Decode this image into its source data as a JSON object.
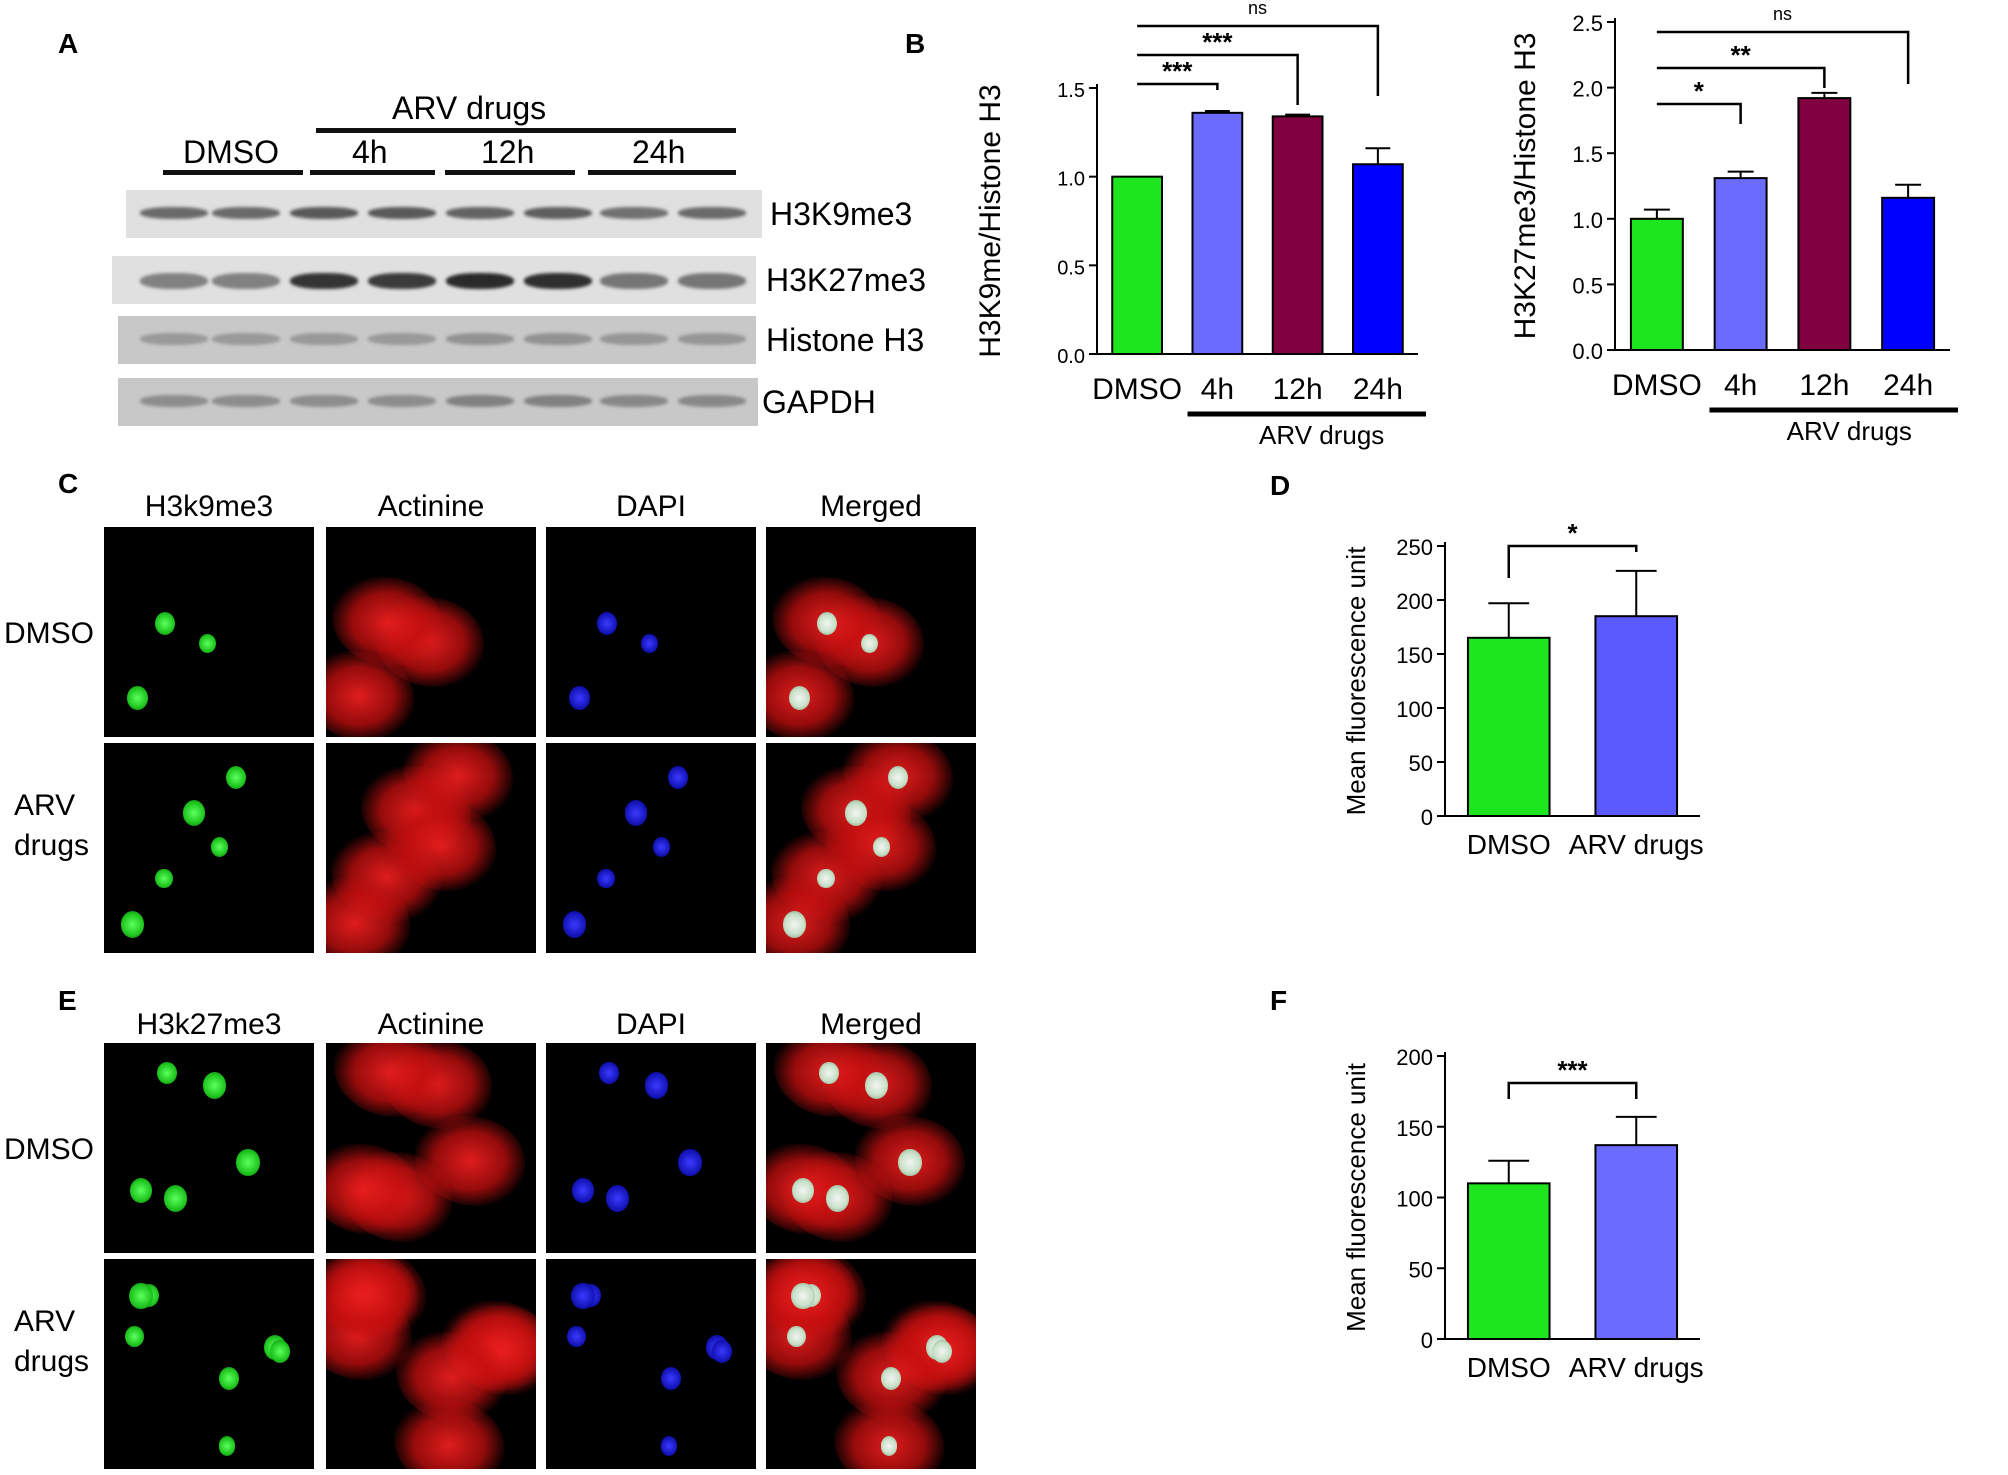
{
  "panels": {
    "A": {
      "label": "A",
      "group_header": "ARV drugs",
      "lanes": [
        "DMSO",
        "4h",
        "12h",
        "24h"
      ],
      "bands": [
        {
          "name": "H3K9me3",
          "intensity": [
            0.55,
            0.55,
            0.62,
            0.62,
            0.58,
            0.6,
            0.52,
            0.55
          ]
        },
        {
          "name": "H3K27me3",
          "intensity": [
            0.45,
            0.45,
            0.78,
            0.75,
            0.82,
            0.8,
            0.5,
            0.5
          ]
        },
        {
          "name": "Histone H3",
          "intensity": [
            0.35,
            0.35,
            0.35,
            0.35,
            0.38,
            0.38,
            0.36,
            0.36
          ]
        },
        {
          "name": "GAPDH",
          "intensity": [
            0.4,
            0.4,
            0.4,
            0.4,
            0.45,
            0.45,
            0.42,
            0.42
          ]
        }
      ]
    },
    "B": {
      "label": "B"
    },
    "C": {
      "label": "C",
      "columns": [
        "H3k9me3",
        "Actinine",
        "DAPI",
        "Merged"
      ],
      "rows": [
        "DMSO",
        "ARV\ndrugs"
      ],
      "row_line1": [
        "DMSO",
        "ARV"
      ],
      "row_line2": [
        "",
        "drugs"
      ]
    },
    "D": {
      "label": "D"
    },
    "E": {
      "label": "E",
      "columns": [
        "H3k27me3",
        "Actinine",
        "DAPI",
        "Merged"
      ],
      "row_line1": [
        "DMSO",
        "ARV"
      ],
      "row_line2": [
        "",
        "drugs"
      ]
    },
    "F": {
      "label": "F"
    }
  },
  "colors": {
    "green": "#1ee61e",
    "lavender": "#6b6bff",
    "maroon": "#800040",
    "blue": "#0000ff"
  },
  "chart_data": [
    {
      "id": "B1",
      "type": "bar",
      "categories": [
        "DMSO",
        "4h",
        "12h",
        "24h"
      ],
      "values": [
        1.0,
        1.36,
        1.34,
        1.07
      ],
      "errors": [
        0.0,
        0.01,
        0.01,
        0.09
      ],
      "colors": [
        "#1ee61e",
        "#6b6bff",
        "#800040",
        "#0000ff"
      ],
      "ylabel": "H3K9me/Histone H3",
      "ylim": [
        0,
        1.5
      ],
      "yticks": [
        "0.0",
        "0.5",
        "1.0",
        "1.5"
      ],
      "group_label": "ARV drugs",
      "significance": [
        {
          "from": 0,
          "to": 1,
          "label": "***"
        },
        {
          "from": 0,
          "to": 2,
          "label": "***"
        },
        {
          "from": 0,
          "to": 3,
          "label": "ns"
        }
      ]
    },
    {
      "id": "B2",
      "type": "bar",
      "categories": [
        "DMSO",
        "4h",
        "12h",
        "24h"
      ],
      "values": [
        1.0,
        1.31,
        1.92,
        1.16
      ],
      "errors": [
        0.07,
        0.05,
        0.04,
        0.1
      ],
      "colors": [
        "#1ee61e",
        "#6b6bff",
        "#800040",
        "#0000ff"
      ],
      "ylabel": "H3K27me3/Histone H3",
      "ylim": [
        0,
        2.5
      ],
      "yticks": [
        "0.0",
        "0.5",
        "1.0",
        "1.5",
        "2.0",
        "2.5"
      ],
      "group_label": "ARV drugs",
      "significance": [
        {
          "from": 0,
          "to": 1,
          "label": "*"
        },
        {
          "from": 0,
          "to": 2,
          "label": "**"
        },
        {
          "from": 0,
          "to": 3,
          "label": "ns"
        }
      ]
    },
    {
      "id": "D",
      "type": "bar",
      "categories": [
        "DMSO",
        "ARV drugs"
      ],
      "values": [
        165,
        185
      ],
      "errors": [
        32,
        42
      ],
      "colors": [
        "#1ee61e",
        "#5a5aff"
      ],
      "ylabel": "Mean fluorescence unit",
      "ylim": [
        0,
        250
      ],
      "yticks": [
        "0",
        "50",
        "100",
        "150",
        "200",
        "250"
      ],
      "significance": [
        {
          "from": 0,
          "to": 1,
          "label": "*"
        }
      ]
    },
    {
      "id": "F",
      "type": "bar",
      "categories": [
        "DMSO",
        "ARV drugs"
      ],
      "values": [
        110,
        137
      ],
      "errors": [
        16,
        20
      ],
      "colors": [
        "#1ee61e",
        "#6b6bff"
      ],
      "ylabel": "Mean fluorescence unit",
      "ylim": [
        0,
        200
      ],
      "yticks": [
        "0",
        "50",
        "100",
        "150",
        "200"
      ],
      "significance": [
        {
          "from": 0,
          "to": 1,
          "label": "***"
        }
      ]
    }
  ]
}
